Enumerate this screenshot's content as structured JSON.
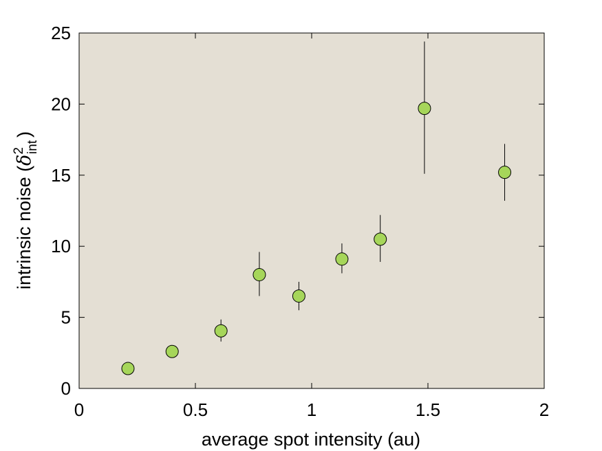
{
  "chart_data": {
    "type": "scatter",
    "title": "",
    "xlabel": "average spot intensity (au)",
    "ylabel": {
      "prefix": "intrinsic noise (",
      "symbol": "δ",
      "superscript": "2",
      "subscript": "int",
      "suffix": ")"
    },
    "xlim": [
      0,
      2
    ],
    "ylim": [
      0,
      25
    ],
    "xticks": [
      0,
      0.5,
      1,
      1.5,
      2
    ],
    "xtick_labels": [
      "0",
      "0.5",
      "1",
      "1.5",
      "2"
    ],
    "yticks": [
      0,
      5,
      10,
      15,
      20,
      25
    ],
    "ytick_labels": [
      "0",
      "5",
      "10",
      "15",
      "20",
      "25"
    ],
    "grid": false,
    "legend": "none",
    "plot_background": "#e4dfd4",
    "marker_color": "#a6d65a",
    "marker_edge": "#000000",
    "errorbar_color": "#000000",
    "series": [
      {
        "points": [
          {
            "x": 0.21,
            "y": 1.4,
            "err_low": 1.4,
            "err_high": 1.4
          },
          {
            "x": 0.4,
            "y": 2.6,
            "err_low": 2.6,
            "err_high": 2.6
          },
          {
            "x": 0.61,
            "y": 4.05,
            "err_low": 3.3,
            "err_high": 4.85
          },
          {
            "x": 0.775,
            "y": 8.0,
            "err_low": 6.5,
            "err_high": 9.6
          },
          {
            "x": 0.945,
            "y": 6.5,
            "err_low": 5.5,
            "err_high": 7.5
          },
          {
            "x": 1.13,
            "y": 9.1,
            "err_low": 8.1,
            "err_high": 10.2
          },
          {
            "x": 1.295,
            "y": 10.5,
            "err_low": 8.9,
            "err_high": 12.2
          },
          {
            "x": 1.485,
            "y": 19.7,
            "err_low": 15.1,
            "err_high": 24.4
          },
          {
            "x": 1.83,
            "y": 15.2,
            "err_low": 13.2,
            "err_high": 17.2
          }
        ]
      }
    ]
  }
}
